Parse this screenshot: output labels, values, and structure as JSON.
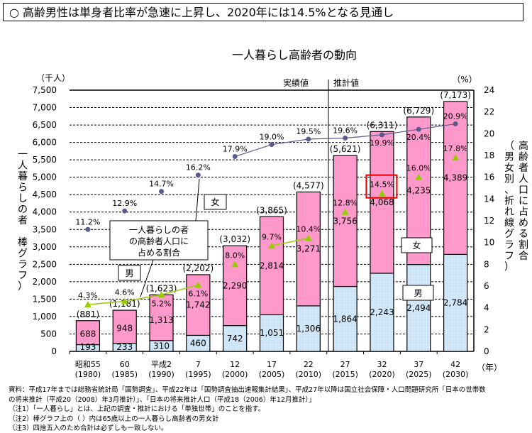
{
  "headline": "○ 高齢男性は単身者比率が急速に上昇し、2020年には14.5%となる見通し",
  "chart_data": {
    "type": "bar",
    "title": "一人暮らし高齢者の動向",
    "ylabel_left": "一人暮らしの者 棒グラフ）",
    "ylabel_left_unit": "（千人）",
    "ylabel_right": "高齢者人口に占める割合",
    "ylabel_right_sub": "（男女別、折れ線グラフ）",
    "ylabel_right_unit": "（%）",
    "xlabel_unit": "（年）",
    "ylim": [
      0,
      7500
    ],
    "yticks": [
      "0",
      "500",
      "1,000",
      "1,500",
      "2,000",
      "2,500",
      "3,000",
      "3,500",
      "4,000",
      "4,500",
      "5,000",
      "5,500",
      "6,000",
      "6,500",
      "7,000",
      "7,500"
    ],
    "y2lim": [
      0,
      24
    ],
    "y2ticks": [
      "0",
      "2",
      "4",
      "6",
      "8",
      "10",
      "12",
      "14",
      "16",
      "18",
      "20",
      "22",
      "24"
    ],
    "grid": true,
    "categories": [
      "昭和55",
      "60",
      "平成2",
      "7",
      "12",
      "17",
      "22",
      "27",
      "32",
      "37",
      "42"
    ],
    "categories_year": [
      "(1980)",
      "(1985)",
      "(1990)",
      "(1995)",
      "(2000)",
      "(2005)",
      "(2010)",
      "(2015)",
      "(2020)",
      "(2025)",
      "(2030)"
    ],
    "section_labels": {
      "actual": "実績値",
      "projected": "推計値"
    },
    "series": [
      {
        "name": "男",
        "kind": "bar",
        "values": [
          193,
          233,
          310,
          460,
          742,
          1051,
          1306,
          1864,
          2243,
          2494,
          2784
        ],
        "labels": [
          "193",
          "233",
          "310",
          "460",
          "742",
          "1,051",
          "1,306",
          "1,864",
          "2,243",
          "2,494",
          "2,784"
        ],
        "color": "#cce4f7"
      },
      {
        "name": "女",
        "kind": "bar",
        "values": [
          688,
          948,
          1313,
          1742,
          2290,
          2814,
          3271,
          3756,
          4068,
          4235,
          4389
        ],
        "labels": [
          "688",
          "948",
          "1,313",
          "1,742",
          "2,290",
          "2,814",
          "3,271",
          "3,756",
          "4,068",
          "4,235",
          "4,389"
        ],
        "color": "#ff99cc"
      },
      {
        "name": "女",
        "kind": "line",
        "axis": "right",
        "values": [
          11.2,
          12.9,
          14.7,
          16.2,
          17.9,
          19.0,
          19.5,
          19.6,
          19.9,
          20.4,
          20.9
        ],
        "labels": [
          "11.2%",
          "12.9%",
          "14.7%",
          "16.2%",
          "17.9%",
          "19.0%",
          "19.5%",
          "19.6%",
          "19.9%",
          "20.4%",
          "20.9%"
        ],
        "color": "#5b5b8f"
      },
      {
        "name": "男",
        "kind": "line",
        "axis": "right",
        "values": [
          4.3,
          4.6,
          5.2,
          6.1,
          8.0,
          9.7,
          10.4,
          12.8,
          14.5,
          16.0,
          17.8
        ],
        "labels": [
          "4.3%",
          "4.6%",
          "5.2%",
          "6.1%",
          "8.0%",
          "9.7%",
          "10.4%",
          "12.8%",
          "14.5%",
          "16.0%",
          "17.8%"
        ],
        "color": "#99cc00"
      }
    ],
    "totals": [
      "(881)",
      "(1,181)",
      "(1,623)",
      "(2,202)",
      "(3,032)",
      "(3,865)",
      "(4,577)",
      "(5,621)",
      "(6,311)",
      "(6,729)",
      "(7,173)"
    ],
    "annotations": {
      "callout": [
        "一人暮らしの者",
        "の高齢者人口に",
        "占める割合"
      ],
      "female": "女",
      "male": "男"
    },
    "highlight": "14.5%",
    "highlight_color": "#e00000"
  },
  "notes": [
    "資料：平成17年までは総務省統計局「国勢調査」、平成22年は「国勢調査抽出速報集計結果」、平成27年以降は国立社会保障・人口問題研究所「日本の世帯数",
    "の将来推計（平成20（2008）年3月推計）」、「日本の将来推計人口（平成18（2006）年12月推計）」",
    "（注1）「一人暮らし」とは、上記の調査・推計における「単独世帯」のことを指す。",
    "（注2）棒グラフ上の（ ）内は65歳以上の一人暮らし高齢者の男女計",
    "（注3）四捨五入のため合計は必ずしも一致しない。"
  ]
}
